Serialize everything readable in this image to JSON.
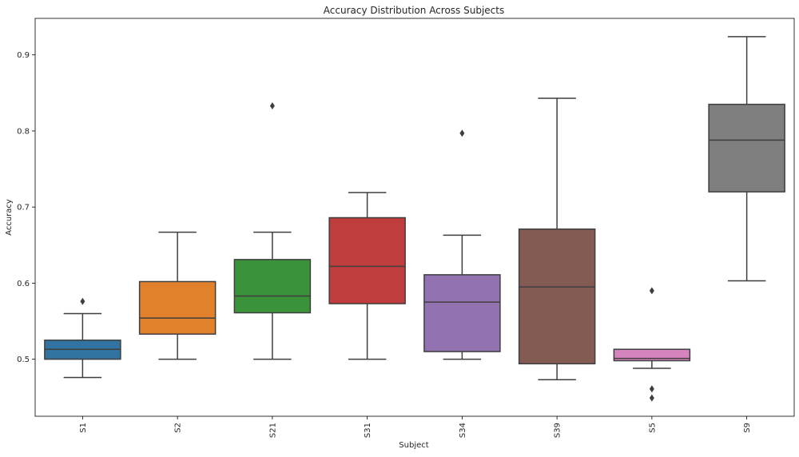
{
  "chart_data": {
    "type": "box",
    "title": "Accuracy Distribution Across Subjects",
    "xlabel": "Subject",
    "ylabel": "Accuracy",
    "ylim": [
      0.425,
      0.948
    ],
    "yticks": [
      0.5,
      0.6,
      0.7,
      0.8,
      0.9
    ],
    "ytick_labels": [
      "0.5",
      "0.6",
      "0.7",
      "0.8",
      "0.9"
    ],
    "x_tick_rotation_deg": 90,
    "grid": false,
    "categories": [
      "S1",
      "S2",
      "S21",
      "S31",
      "S34",
      "S39",
      "S5",
      "S9"
    ],
    "boxes": [
      {
        "label": "S1",
        "color": "#3274a1",
        "whisker_low": 0.476,
        "q1": 0.5,
        "median": 0.513,
        "q3": 0.525,
        "whisker_high": 0.56,
        "outliers": [
          0.576
        ]
      },
      {
        "label": "S2",
        "color": "#e1812c",
        "whisker_low": 0.5,
        "q1": 0.533,
        "median": 0.554,
        "q3": 0.602,
        "whisker_high": 0.667,
        "outliers": []
      },
      {
        "label": "S21",
        "color": "#3a923a",
        "whisker_low": 0.5,
        "q1": 0.561,
        "median": 0.583,
        "q3": 0.631,
        "whisker_high": 0.667,
        "outliers": [
          0.833
        ]
      },
      {
        "label": "S31",
        "color": "#c03d3e",
        "whisker_low": 0.5,
        "q1": 0.573,
        "median": 0.622,
        "q3": 0.686,
        "whisker_high": 0.719,
        "outliers": []
      },
      {
        "label": "S34",
        "color": "#9372b2",
        "whisker_low": 0.5,
        "q1": 0.51,
        "median": 0.575,
        "q3": 0.611,
        "whisker_high": 0.663,
        "outliers": [
          0.797
        ]
      },
      {
        "label": "S39",
        "color": "#845b53",
        "whisker_low": 0.473,
        "q1": 0.494,
        "median": 0.595,
        "q3": 0.671,
        "whisker_high": 0.843,
        "outliers": []
      },
      {
        "label": "S5",
        "color": "#d684bd",
        "whisker_low": 0.488,
        "q1": 0.498,
        "median": 0.501,
        "q3": 0.513,
        "whisker_high": 0.513,
        "outliers": [
          0.59,
          0.461,
          0.449
        ]
      },
      {
        "label": "S9",
        "color": "#7f7f7f",
        "whisker_low": 0.603,
        "q1": 0.72,
        "median": 0.788,
        "q3": 0.835,
        "whisker_high": 0.924,
        "outliers": []
      }
    ]
  }
}
